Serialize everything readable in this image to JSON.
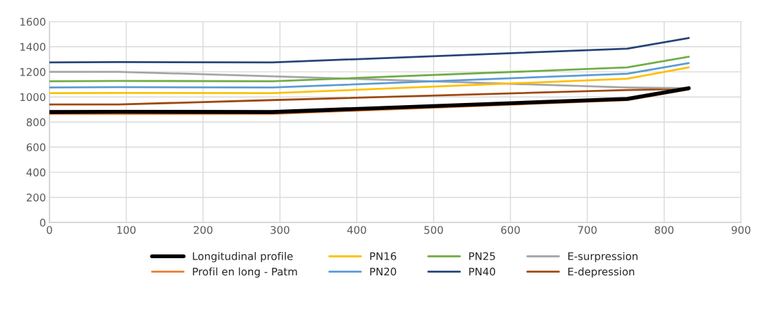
{
  "chart_data": {
    "type": "line",
    "x": [
      0,
      90,
      290,
      752,
      832
    ],
    "series": [
      {
        "name": "Longitudinal profile",
        "color": "#000000",
        "values": [
          880,
          882,
          880,
          985,
          1070
        ]
      },
      {
        "name": "Profil en long - Patm",
        "color": "#ed7d31",
        "values": [
          865,
          865,
          865,
          975,
          1060
        ]
      },
      {
        "name": "PN16",
        "color": "#ffc000",
        "values": [
          1030,
          1032,
          1030,
          1145,
          1235
        ]
      },
      {
        "name": "PN20",
        "color": "#5b9bd5",
        "values": [
          1075,
          1078,
          1075,
          1185,
          1270
        ]
      },
      {
        "name": "PN25",
        "color": "#70ad47",
        "values": [
          1125,
          1128,
          1125,
          1235,
          1320
        ]
      },
      {
        "name": "PN40",
        "color": "#264478",
        "values": [
          1275,
          1278,
          1275,
          1385,
          1470
        ]
      },
      {
        "name": "E-surpression",
        "color": "#a5a5a5",
        "values": [
          1200,
          1200,
          1165,
          1075,
          1070
        ]
      },
      {
        "name": "E-depression",
        "color": "#9e480e",
        "values": [
          940,
          940,
          975,
          1055,
          1065
        ]
      }
    ],
    "xlim": [
      0,
      900
    ],
    "xticks": [
      0,
      100,
      200,
      300,
      400,
      500,
      600,
      700,
      800,
      900
    ],
    "ylim": [
      0,
      1600
    ],
    "yticks": [
      0,
      200,
      400,
      600,
      800,
      1000,
      1200,
      1400,
      1600
    ],
    "grid": true,
    "legend": "bottom",
    "marker": "none",
    "line_style": "solid"
  }
}
